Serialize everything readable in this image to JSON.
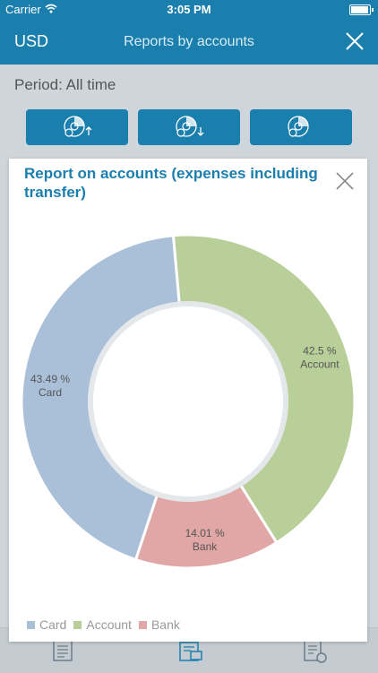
{
  "status_bar": {
    "carrier": "Carrier",
    "time": "3:05 PM"
  },
  "nav": {
    "currency": "USD",
    "title": "Reports by accounts",
    "close_icon": "close-icon"
  },
  "period": {
    "label": "Period: All time"
  },
  "report_buttons": [
    {
      "icon": "report-income-icon"
    },
    {
      "icon": "report-expense-icon"
    },
    {
      "icon": "report-balance-icon"
    }
  ],
  "modal": {
    "title": "Report on accounts (expenses including transfer)",
    "close_icon": "close-icon"
  },
  "chart_data": {
    "type": "pie",
    "donut": true,
    "categories": [
      "Account",
      "Bank",
      "Card"
    ],
    "values": [
      42.5,
      14.01,
      43.49
    ],
    "data_labels": [
      "42.5 %",
      "14.01 %",
      "43.49 %"
    ],
    "colors": [
      "#b9cf9a",
      "#e1a6a6",
      "#aac0d9"
    ],
    "legend": [
      "Card",
      "Account",
      "Bank"
    ],
    "legend_colors": [
      "#aac0d9",
      "#b9cf9a",
      "#e1a6a6"
    ],
    "legend_position": "bottom-left"
  },
  "toolbar": [
    {
      "icon": "list-icon"
    },
    {
      "icon": "wallet-icon"
    },
    {
      "icon": "report-icon"
    }
  ],
  "colors": {
    "accent": "#1b7fae",
    "background": "#cfd6db"
  }
}
